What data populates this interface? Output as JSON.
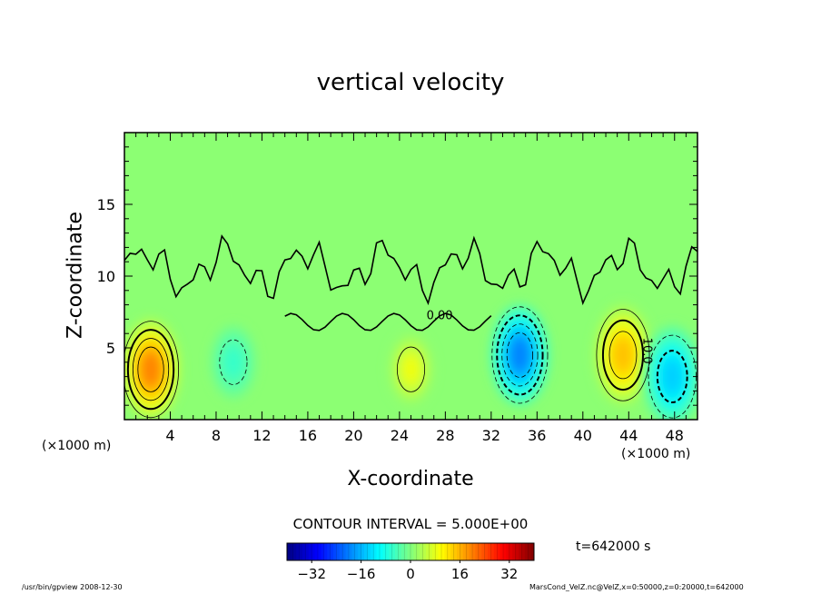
{
  "chart_data": {
    "type": "heatmap",
    "title": "vertical velocity",
    "xlabel": "X-coordinate",
    "ylabel": "Z-coordinate",
    "x_unit": "(×1000 m)",
    "z_unit": "(×1000 m)",
    "xlim": [
      0,
      50
    ],
    "ylim": [
      0,
      20
    ],
    "x_ticks": [
      4,
      8,
      12,
      16,
      20,
      24,
      28,
      32,
      36,
      40,
      44,
      48
    ],
    "y_ticks": [
      5,
      10,
      15
    ],
    "contour_interval_text": "CONTOUR INTERVAL = 5.000E+00",
    "contour_labels": [
      "0.00",
      "10.0"
    ],
    "colorbar": {
      "ticks": [
        -32,
        -16,
        0,
        16,
        32
      ],
      "range": [
        -40,
        40
      ]
    },
    "time_label": "t=642000 s",
    "features": [
      {
        "kind": "updraft",
        "x": 2.3,
        "z": 3.5,
        "peak": 20
      },
      {
        "kind": "downdraft",
        "x": 9.5,
        "z": 4.0,
        "peak": -6
      },
      {
        "kind": "updraft",
        "x": 25.0,
        "z": 3.5,
        "peak": 9
      },
      {
        "kind": "downdraft",
        "x": 34.5,
        "z": 4.5,
        "peak": -20
      },
      {
        "kind": "updraft",
        "x": 43.5,
        "z": 4.5,
        "peak": 15
      },
      {
        "kind": "downdraft",
        "x": 47.8,
        "z": 3.0,
        "peak": -14
      }
    ]
  },
  "footer": {
    "program": "/usr/bin/gpview   2008-12-30",
    "source": "MarsCond_VelZ.nc@VelZ,x=0:50000,z=0:20000,t=642000"
  },
  "colors": {
    "background": "#2ee02e",
    "frame": "#000000"
  }
}
